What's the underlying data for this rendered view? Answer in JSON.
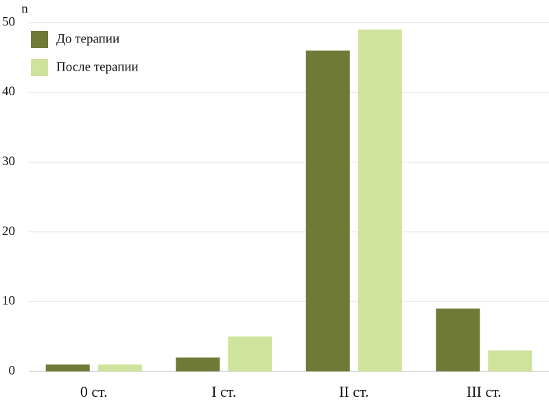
{
  "chart_data": {
    "type": "bar",
    "y_label": "n",
    "categories": [
      "0 ст.",
      "I ст.",
      "II ст.",
      "III ст."
    ],
    "series": [
      {
        "name": "До терапии",
        "color": "#6f7a36",
        "values": [
          1,
          2,
          46,
          9
        ]
      },
      {
        "name": "После терапии",
        "color": "#cfe39c",
        "values": [
          1,
          5,
          49,
          3
        ]
      }
    ],
    "ylim": [
      0,
      50
    ],
    "yticks": [
      0,
      10,
      20,
      30,
      40,
      50
    ],
    "grid": true,
    "legend": "top-left"
  }
}
